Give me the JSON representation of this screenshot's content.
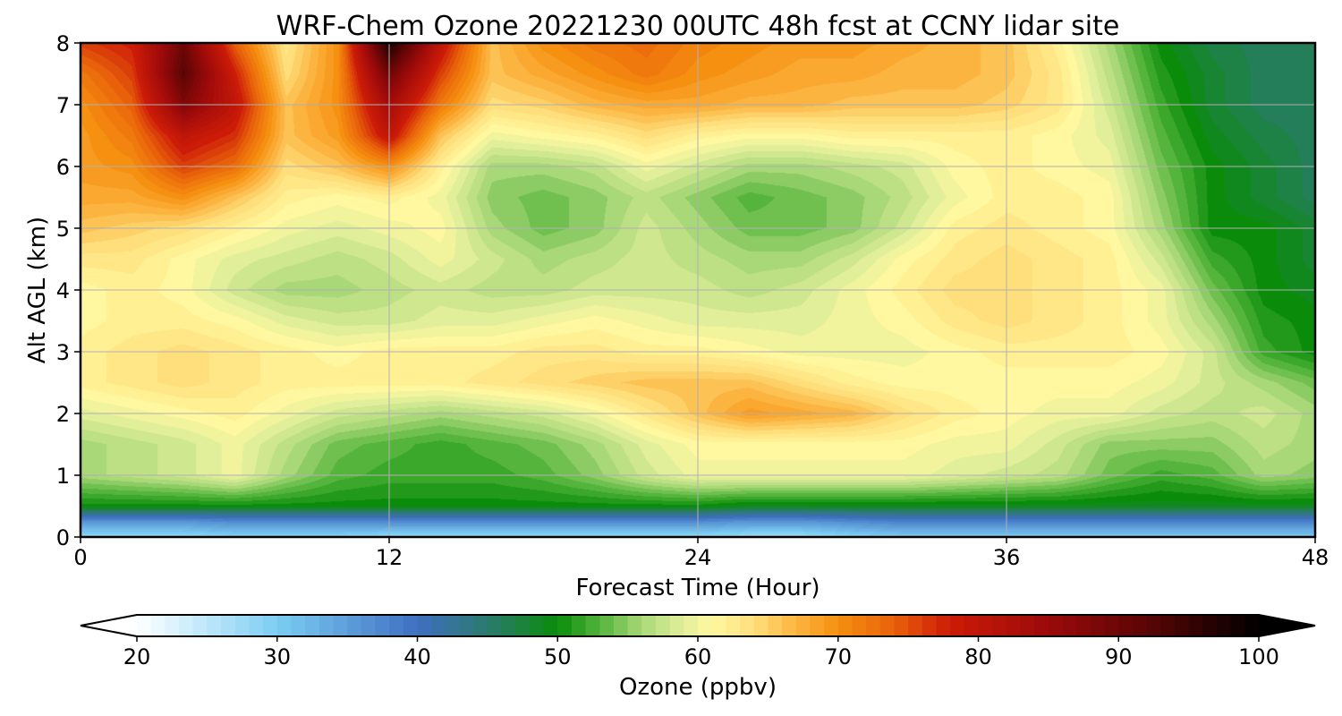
{
  "chart_data": {
    "type": "heatmap",
    "title": "WRF-Chem Ozone  20221230 00UTC 48h fcst at CCNY lidar site",
    "xlabel": "Forecast Time (Hour)",
    "ylabel": "Alt AGL (km)",
    "xlim": [
      0,
      48
    ],
    "ylim": [
      0,
      8
    ],
    "xticks": [
      0,
      12,
      24,
      36,
      48
    ],
    "yticks": [
      0,
      1,
      2,
      3,
      4,
      5,
      6,
      7,
      8
    ],
    "grid": true,
    "x_hours": [
      0,
      2,
      4,
      6,
      8,
      10,
      12,
      14,
      16,
      18,
      20,
      22,
      24,
      26,
      28,
      30,
      32,
      34,
      36,
      38,
      40,
      42,
      44,
      46,
      48
    ],
    "y_km": [
      0,
      0.25,
      0.5,
      1,
      1.5,
      2,
      2.5,
      3,
      3.5,
      4,
      4.5,
      5,
      5.5,
      6,
      6.5,
      7,
      7.5,
      8
    ],
    "z_ppbv": [
      [
        28,
        28,
        28,
        29,
        29,
        29,
        28,
        28,
        28,
        28,
        28,
        28,
        28,
        27,
        27,
        29,
        30,
        30,
        30,
        30,
        30,
        30,
        30,
        30,
        30
      ],
      [
        36,
        36,
        36,
        37,
        37,
        37,
        37,
        37,
        37,
        37,
        37,
        37,
        37,
        36,
        36,
        37,
        38,
        38,
        38,
        38,
        38,
        38,
        38,
        38,
        38
      ],
      [
        50,
        50,
        50,
        50,
        50,
        50,
        50,
        50,
        50,
        50,
        50,
        50,
        50,
        49,
        49,
        49,
        49,
        49,
        49,
        49,
        49,
        49,
        49,
        49,
        49
      ],
      [
        56,
        57,
        58,
        60,
        56,
        53,
        52,
        52,
        52,
        53,
        55,
        58,
        60,
        60,
        60,
        60,
        60,
        59,
        58,
        57,
        54,
        52,
        53,
        56,
        55
      ],
      [
        56,
        57,
        58,
        60,
        57,
        54,
        53,
        52,
        53,
        54,
        56,
        59,
        61,
        61,
        61,
        61,
        61,
        60,
        60,
        58,
        55,
        55,
        55,
        57,
        56
      ],
      [
        59,
        60,
        61,
        62,
        60,
        58,
        57,
        56,
        57,
        58,
        60,
        63,
        66,
        69,
        68,
        67,
        64,
        62,
        61,
        60,
        60,
        58,
        57,
        58,
        56
      ],
      [
        62,
        63,
        64,
        63,
        62,
        62,
        62,
        62,
        63,
        64,
        65,
        66,
        66,
        66,
        64,
        62,
        61,
        61,
        61,
        61,
        61,
        60,
        58,
        56,
        54
      ],
      [
        62,
        63,
        64,
        63,
        62,
        61,
        62,
        62,
        62,
        63,
        63,
        62,
        62,
        61,
        60,
        60,
        60,
        61,
        62,
        62,
        62,
        61,
        58,
        52,
        50
      ],
      [
        61,
        62,
        62,
        61,
        59,
        58,
        58,
        59,
        59,
        60,
        61,
        60,
        59,
        59,
        59,
        60,
        61,
        63,
        64,
        63,
        62,
        60,
        56,
        51,
        50
      ],
      [
        61,
        62,
        61,
        58,
        56,
        56,
        57,
        58,
        57,
        57,
        58,
        58,
        58,
        57,
        58,
        60,
        62,
        64,
        64,
        63,
        62,
        60,
        54,
        50,
        49
      ],
      [
        63,
        63,
        61,
        59,
        58,
        57,
        58,
        60,
        58,
        56,
        57,
        58,
        57,
        56,
        56,
        58,
        61,
        63,
        64,
        63,
        62,
        58,
        52,
        50,
        48
      ],
      [
        66,
        65,
        64,
        62,
        60,
        59,
        60,
        61,
        56,
        54,
        55,
        58,
        56,
        54,
        54,
        55,
        58,
        62,
        63,
        62,
        61,
        56,
        50,
        50,
        48
      ],
      [
        68,
        68,
        70,
        66,
        62,
        61,
        62,
        60,
        55,
        54,
        55,
        57,
        55,
        53,
        54,
        55,
        57,
        60,
        62,
        62,
        61,
        55,
        50,
        48,
        46
      ],
      [
        69,
        70,
        76,
        73,
        64,
        66,
        70,
        62,
        56,
        56,
        57,
        60,
        58,
        56,
        56,
        57,
        58,
        61,
        62,
        61,
        60,
        54,
        50,
        48,
        46
      ],
      [
        69,
        72,
        80,
        77,
        66,
        69,
        80,
        66,
        60,
        61,
        62,
        64,
        62,
        61,
        61,
        62,
        62,
        62,
        62,
        61,
        59,
        53,
        49,
        47,
        46
      ],
      [
        70,
        74,
        88,
        80,
        66,
        70,
        84,
        72,
        64,
        65,
        67,
        68,
        68,
        67,
        67,
        66,
        66,
        66,
        65,
        63,
        58,
        52,
        48,
        46,
        46
      ],
      [
        72,
        76,
        92,
        78,
        64,
        70,
        90,
        76,
        66,
        68,
        70,
        72,
        70,
        69,
        68,
        68,
        67,
        67,
        66,
        63,
        57,
        51,
        48,
        46,
        46
      ],
      [
        76,
        78,
        90,
        74,
        63,
        70,
        98,
        80,
        66,
        70,
        72,
        73,
        71,
        70,
        69,
        69,
        68,
        67,
        66,
        62,
        56,
        50,
        47,
        46,
        46
      ]
    ],
    "colorbar": {
      "label": "Ozone  (ppbv)",
      "min": 20,
      "max": 100,
      "ticks": [
        20,
        30,
        40,
        50,
        60,
        70,
        80,
        90,
        100
      ],
      "extend": "both",
      "color_stops": [
        [
          20,
          "#ffffff"
        ],
        [
          30,
          "#7ccdf3"
        ],
        [
          40,
          "#3f6fc0"
        ],
        [
          45,
          "#2b7a6e"
        ],
        [
          50,
          "#0a8c0a"
        ],
        [
          53,
          "#54b43c"
        ],
        [
          56,
          "#a9d878"
        ],
        [
          59,
          "#e2ef9a"
        ],
        [
          61,
          "#fff8a0"
        ],
        [
          64,
          "#ffdf7c"
        ],
        [
          67,
          "#fcb440"
        ],
        [
          70,
          "#f59010"
        ],
        [
          74,
          "#e8610a"
        ],
        [
          78,
          "#cc1b08"
        ],
        [
          85,
          "#9c0a0a"
        ],
        [
          92,
          "#5a0505"
        ],
        [
          100,
          "#000000"
        ]
      ],
      "under_color": "#ffffff",
      "over_color": "#000000"
    }
  }
}
